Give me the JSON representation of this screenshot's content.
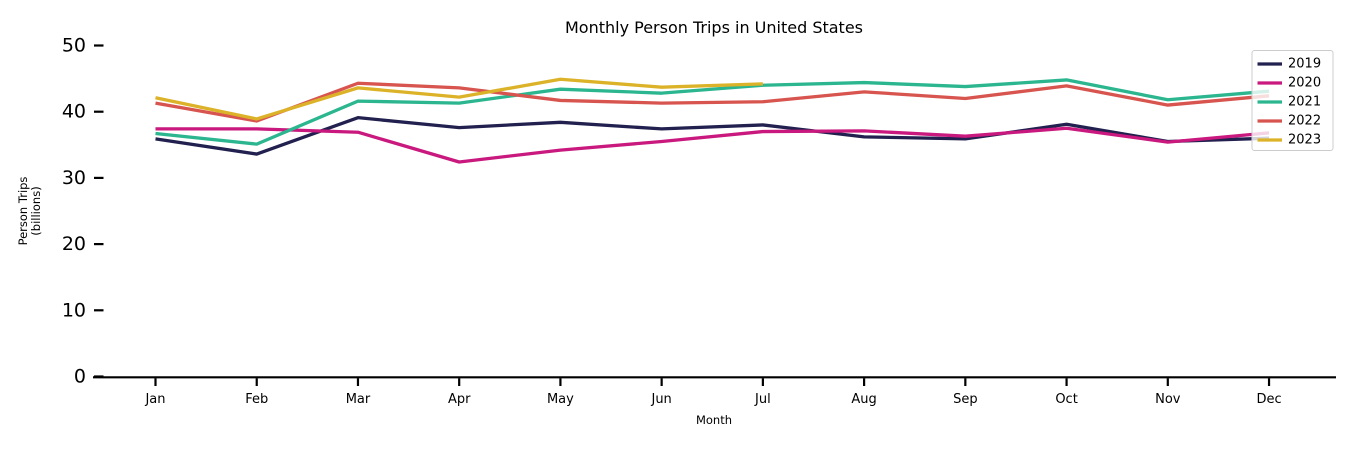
{
  "figure": {
    "title": "Monthly Person Trips in United States",
    "xlabel": "Month",
    "ylabel_line1": "Person Trips",
    "ylabel_line2": "(billions)"
  },
  "legend": {
    "entries": [
      "2019",
      "2020",
      "2021",
      "2022",
      "2023"
    ]
  },
  "chart_data": {
    "type": "line",
    "title": "Monthly Person Trips in United States",
    "xlabel": "Month",
    "ylabel": "Person Trips (billions)",
    "categories": [
      "Jan",
      "Feb",
      "Mar",
      "Apr",
      "May",
      "Jun",
      "Jul",
      "Aug",
      "Sep",
      "Oct",
      "Nov",
      "Dec"
    ],
    "ylim": [
      0,
      50
    ],
    "yticks": [
      0,
      10,
      20,
      30,
      40,
      50
    ],
    "grid": false,
    "legend_position": "upper right",
    "legend_facecolor": "#ffffff",
    "legend_edgecolor": "#cccccc",
    "background_color": "#ffffff",
    "series": [
      {
        "name": "2019",
        "color": "#21204f",
        "values": [
          35.9,
          33.6,
          39.1,
          37.6,
          38.4,
          37.4,
          38.0,
          36.2,
          35.9,
          38.1,
          35.5,
          36.0
        ]
      },
      {
        "name": "2020",
        "color": "#c9197e",
        "values": [
          37.4,
          37.4,
          36.9,
          32.4,
          34.2,
          35.5,
          37.0,
          37.1,
          36.3,
          37.5,
          35.4,
          36.8
        ]
      },
      {
        "name": "2021",
        "color": "#2bb68f",
        "values": [
          36.7,
          35.1,
          41.6,
          41.3,
          43.4,
          42.8,
          44.0,
          44.4,
          43.8,
          44.8,
          41.8,
          43.1
        ]
      },
      {
        "name": "2022",
        "color": "#d8544e",
        "values": [
          41.3,
          38.6,
          44.3,
          43.6,
          41.7,
          41.3,
          41.5,
          43.0,
          42.0,
          43.9,
          41.0,
          42.4
        ]
      },
      {
        "name": "2023",
        "color": "#dcb328",
        "values": [
          42.1,
          38.9,
          43.6,
          42.2,
          44.9,
          43.7,
          44.2,
          null,
          null,
          null,
          null,
          null
        ]
      }
    ]
  }
}
